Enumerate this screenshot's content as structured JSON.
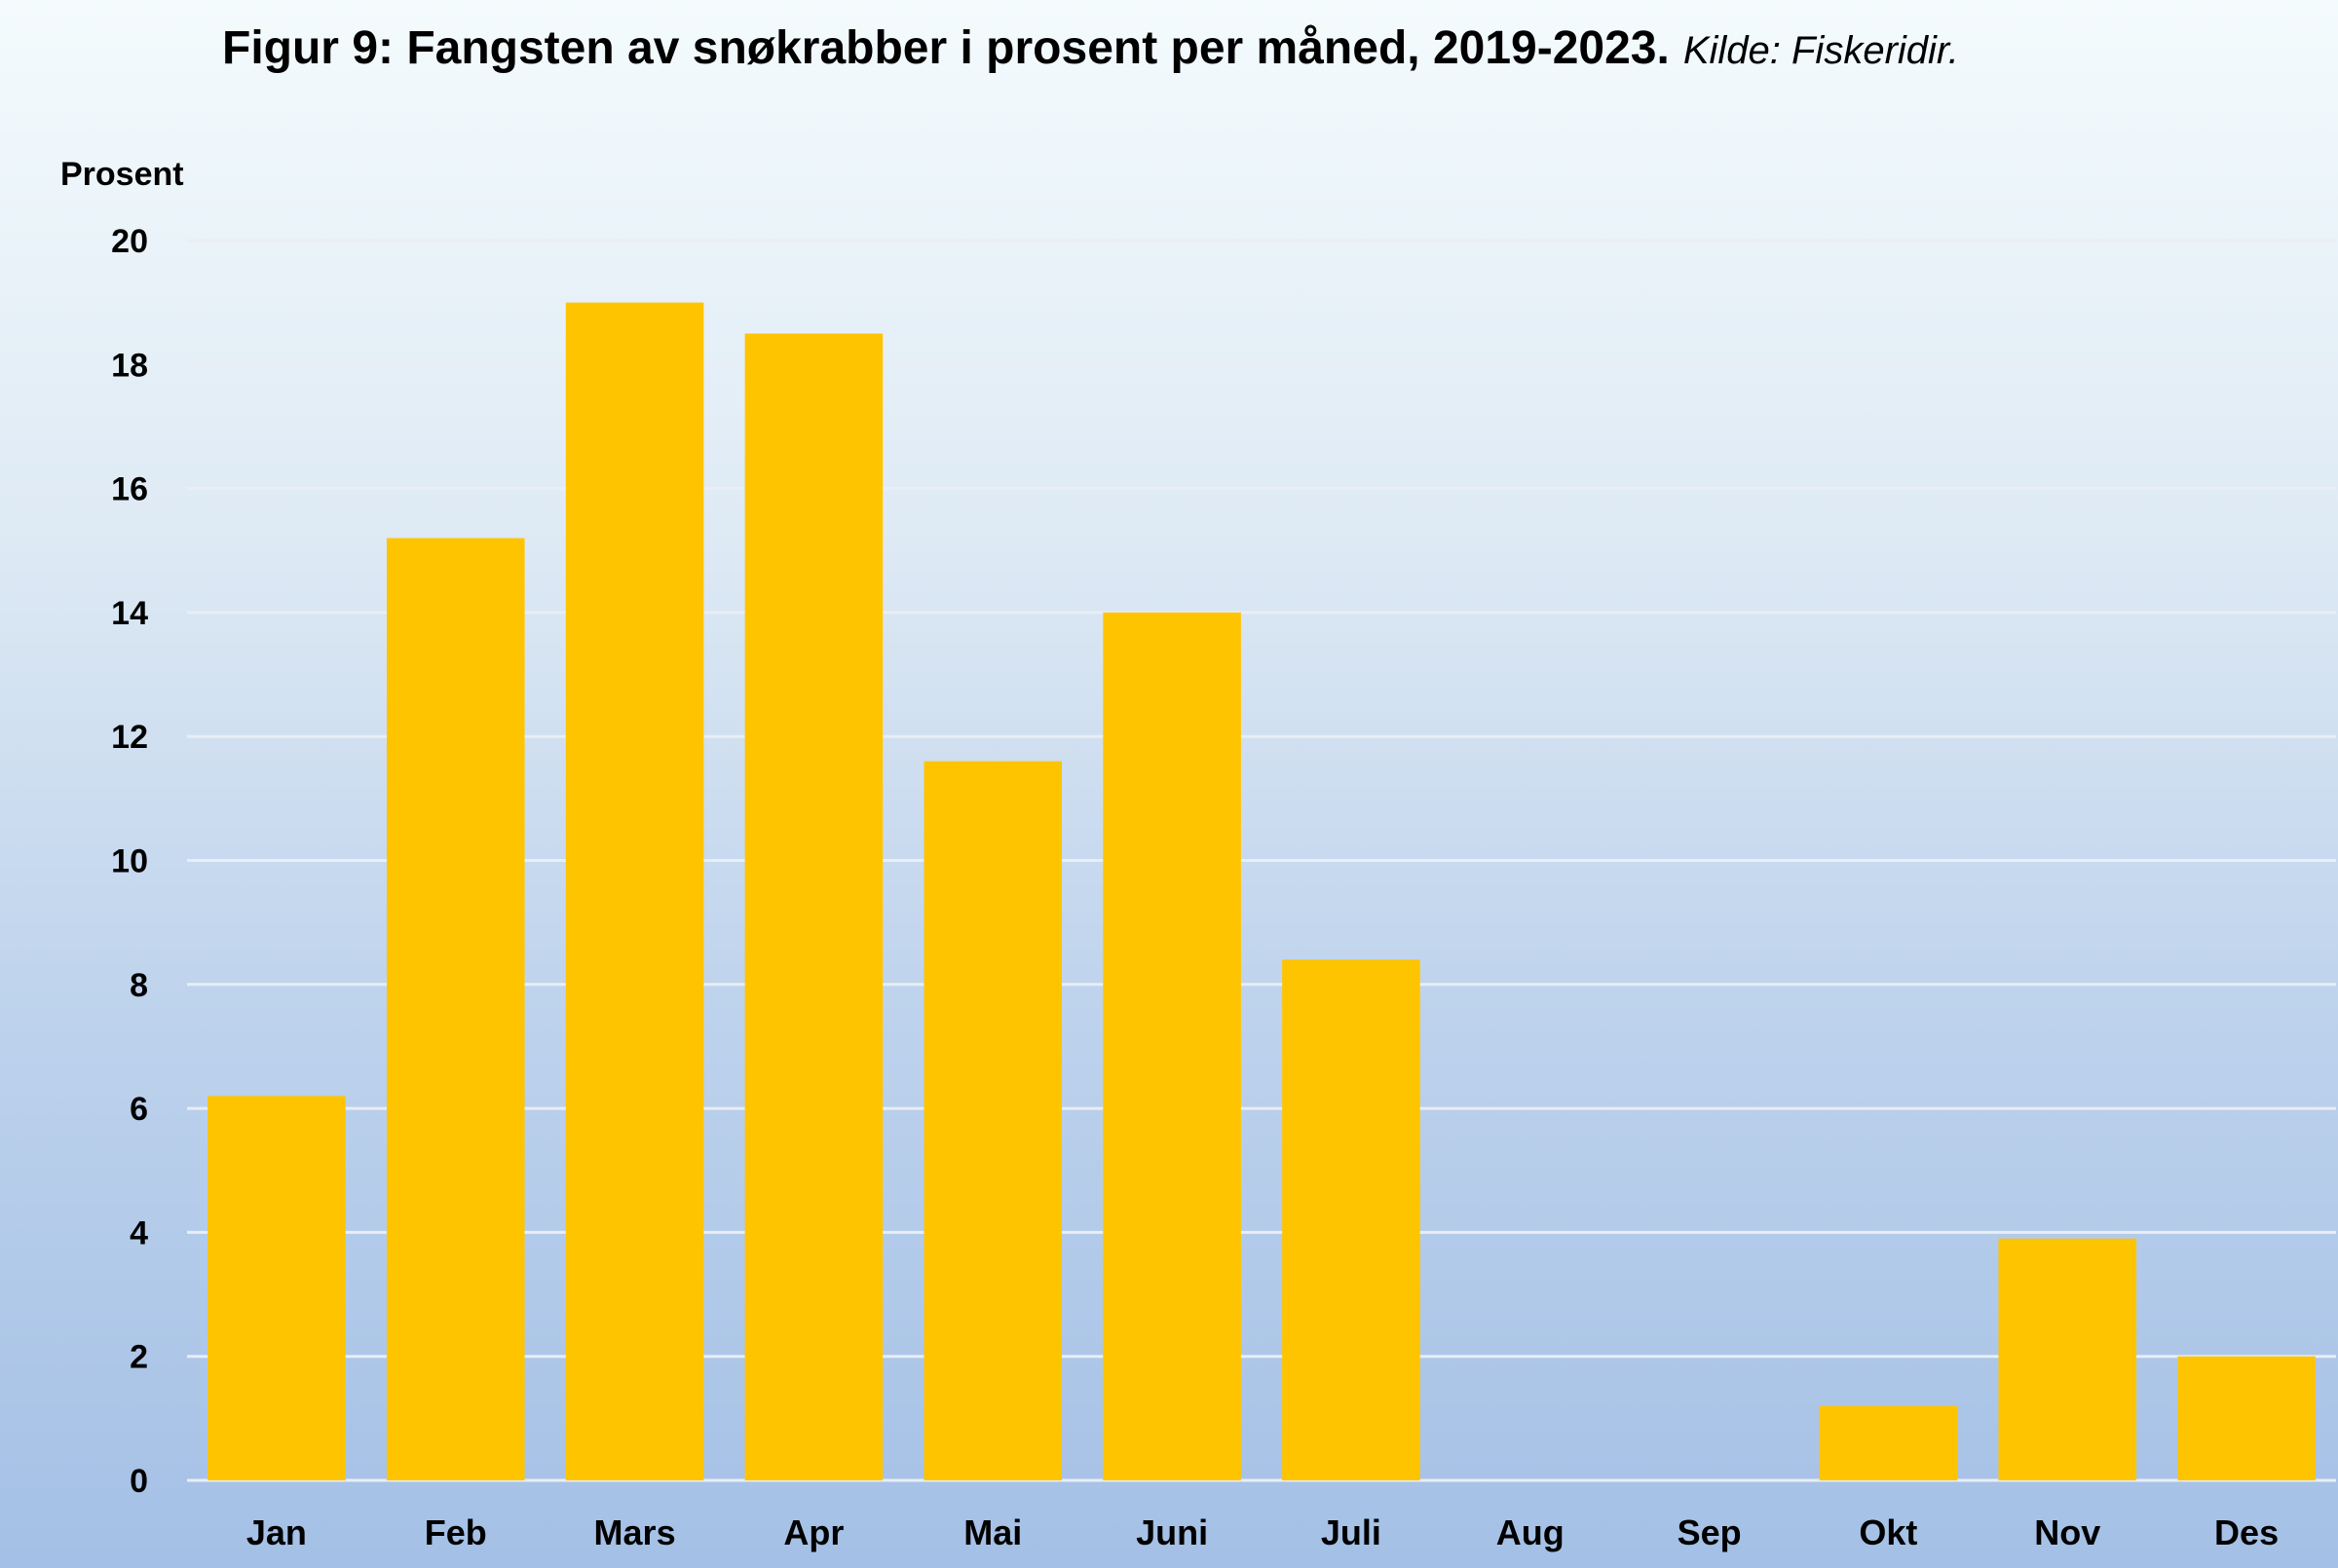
{
  "title": {
    "main": "Figur 9: Fangsten av snøkrabber i prosent per måned,  2019-2023.",
    "source": "Kilde: Fiskeridir."
  },
  "chart_data": {
    "type": "bar",
    "title": "Figur 9: Fangsten av snøkrabber i prosent per måned,  2019-2023.",
    "subtitle": "Kilde: Fiskeridir.",
    "xlabel": "",
    "ylabel": "Prosent",
    "ylim": [
      0,
      20
    ],
    "yticks": [
      0,
      2,
      4,
      6,
      8,
      10,
      12,
      14,
      16,
      18,
      20
    ],
    "grid": true,
    "categories": [
      "Jan",
      "Feb",
      "Mars",
      "Apr",
      "Mai",
      "Juni",
      "Juli",
      "Aug",
      "Sep",
      "Okt",
      "Nov",
      "Des"
    ],
    "values": [
      6.2,
      15.2,
      19.0,
      18.5,
      11.6,
      14.0,
      8.4,
      0,
      0,
      1.2,
      3.9,
      2.0
    ],
    "bar_color": "#ffc400",
    "grid_color": "#e8eef4"
  }
}
